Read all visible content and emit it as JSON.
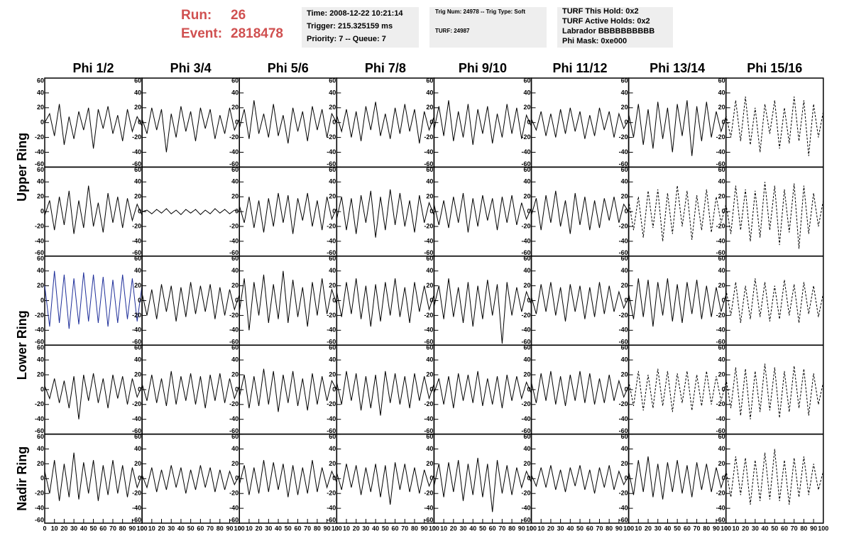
{
  "header": {
    "run_label": "Run:",
    "run": "26",
    "event_label": "Event:",
    "event": "2818478",
    "boxes": [
      [
        "Time: 2008-12-22 10:21:14",
        "Trigger: 215.325159 ms",
        "Priority: 7 -- Queue: 7"
      ],
      [
        "Trig Num: 24978 -- Trig Type: Soft",
        "TURF: 24987"
      ],
      [
        "TURF This Hold: 0x2",
        "TURF Active Holds: 0x2",
        "Labrador BBBBBBBBBB",
        "Phi Mask: 0xe000"
      ]
    ]
  },
  "chart_data": {
    "type": "line",
    "columns": [
      "Phi 1/2",
      "Phi 3/4",
      "Phi 5/6",
      "Phi 7/8",
      "Phi 9/10",
      "Phi 11/12",
      "Phi 13/14",
      "Phi 15/16"
    ],
    "row_labels": [
      "Upper Ring",
      "Lower Ring",
      "Nadir Ring"
    ],
    "x": [
      0,
      5,
      10,
      15,
      20,
      25,
      30,
      35,
      40,
      45,
      50,
      55,
      60,
      65,
      70,
      75,
      80,
      85,
      90,
      95,
      100
    ],
    "xlim": [
      0,
      100
    ],
    "ylim": [
      -60,
      60
    ],
    "xticks": [
      0,
      10,
      20,
      30,
      40,
      50,
      60,
      70,
      80,
      90,
      100
    ],
    "yticks": [
      -60,
      -40,
      -20,
      0,
      20,
      40,
      60
    ],
    "panels": [
      [
        {
          "color": "#000000",
          "style": "solid",
          "values": [
            0,
            12,
            -18,
            25,
            -30,
            8,
            -22,
            15,
            -10,
            20,
            -35,
            18,
            -8,
            22,
            -15,
            10,
            -25,
            18,
            -12,
            8,
            -5
          ]
        },
        {
          "color": "#000000",
          "style": "solid",
          "values": [
            5,
            -15,
            20,
            -10,
            18,
            -40,
            12,
            -20,
            22,
            -12,
            15,
            -25,
            20,
            -8,
            18,
            -22,
            10,
            -15,
            20,
            -10,
            5
          ]
        },
        {
          "color": "#000000",
          "style": "solid",
          "values": [
            -8,
            18,
            -22,
            30,
            -15,
            12,
            -20,
            25,
            -18,
            10,
            -28,
            20,
            -12,
            15,
            -25,
            22,
            -10,
            18,
            -20,
            12,
            0
          ]
        },
        {
          "color": "#000000",
          "style": "solid",
          "values": [
            10,
            -12,
            18,
            -20,
            15,
            -25,
            22,
            -10,
            28,
            -18,
            12,
            -22,
            20,
            -15,
            25,
            -12,
            18,
            -28,
            15,
            -10,
            8
          ]
        },
        {
          "color": "#000000",
          "style": "solid",
          "values": [
            -10,
            22,
            -18,
            30,
            -25,
            15,
            -20,
            25,
            -30,
            18,
            -15,
            22,
            -28,
            12,
            -20,
            25,
            -15,
            20,
            -22,
            10,
            -5
          ]
        },
        {
          "color": "#000000",
          "style": "solid",
          "values": [
            5,
            -10,
            15,
            -18,
            12,
            -20,
            18,
            -15,
            20,
            -12,
            15,
            -22,
            10,
            -18,
            20,
            -10,
            15,
            -20,
            12,
            -8,
            4
          ]
        },
        {
          "color": "#000000",
          "style": "solid",
          "values": [
            12,
            -20,
            25,
            -30,
            18,
            -35,
            28,
            -22,
            20,
            -40,
            25,
            -18,
            30,
            -45,
            22,
            -25,
            28,
            -20,
            15,
            -12,
            8
          ]
        },
        {
          "color": "#000000",
          "style": "dashed",
          "values": [
            10,
            -20,
            30,
            -25,
            35,
            -30,
            20,
            -40,
            25,
            -15,
            30,
            -35,
            20,
            -28,
            35,
            -25,
            30,
            -45,
            25,
            -20,
            15
          ]
        }
      ],
      [
        {
          "color": "#000000",
          "style": "solid",
          "values": [
            -5,
            15,
            -25,
            20,
            -18,
            28,
            -30,
            15,
            -22,
            35,
            -20,
            12,
            -28,
            25,
            -15,
            20,
            -22,
            18,
            -12,
            10,
            -5
          ]
        },
        {
          "color": "#000000",
          "style": "solid",
          "values": [
            0,
            2,
            -3,
            3,
            -2,
            4,
            -3,
            2,
            -4,
            3,
            -2,
            3,
            -4,
            2,
            -3,
            4,
            -2,
            3,
            -3,
            2,
            0
          ]
        },
        {
          "color": "#000000",
          "style": "solid",
          "values": [
            8,
            -15,
            20,
            -22,
            15,
            -28,
            18,
            -20,
            25,
            -15,
            22,
            -30,
            18,
            -12,
            25,
            -20,
            15,
            -25,
            20,
            -10,
            5
          ]
        },
        {
          "color": "#000000",
          "style": "solid",
          "values": [
            -10,
            20,
            -25,
            18,
            -30,
            22,
            -15,
            28,
            -35,
            20,
            -25,
            30,
            -18,
            25,
            -20,
            15,
            -28,
            22,
            -15,
            12,
            -5
          ]
        },
        {
          "color": "#000000",
          "style": "solid",
          "values": [
            10,
            -18,
            15,
            -22,
            20,
            -15,
            25,
            -28,
            18,
            -20,
            22,
            -12,
            18,
            -25,
            20,
            -15,
            22,
            -18,
            12,
            -10,
            5
          ]
        },
        {
          "color": "#000000",
          "style": "solid",
          "values": [
            -5,
            18,
            -25,
            22,
            -15,
            28,
            -20,
            15,
            -30,
            25,
            -18,
            20,
            -25,
            15,
            -22,
            18,
            -12,
            20,
            -15,
            10,
            0
          ]
        },
        {
          "color": "#000000",
          "style": "dashed",
          "values": [
            15,
            -25,
            20,
            -35,
            28,
            -22,
            30,
            -40,
            25,
            -30,
            35,
            -20,
            28,
            -38,
            22,
            -25,
            30,
            -28,
            20,
            -15,
            10
          ]
        },
        {
          "color": "#000000",
          "style": "dashed",
          "values": [
            10,
            -30,
            35,
            -25,
            30,
            -40,
            28,
            -35,
            40,
            -25,
            35,
            -45,
            30,
            -28,
            38,
            -50,
            35,
            -30,
            25,
            -20,
            15
          ]
        }
      ],
      [
        {
          "color": "#1f2f9a",
          "style": "solid",
          "values": [
            20,
            -35,
            40,
            -30,
            35,
            -38,
            30,
            -32,
            38,
            -28,
            35,
            -30,
            32,
            -35,
            28,
            -30,
            35,
            -25,
            30,
            -28,
            20
          ]
        },
        {
          "color": "#000000",
          "style": "solid",
          "values": [
            10,
            -20,
            15,
            -25,
            22,
            -15,
            20,
            -28,
            18,
            -22,
            25,
            -18,
            20,
            -15,
            22,
            -25,
            18,
            -20,
            15,
            -12,
            8
          ]
        },
        {
          "color": "#000000",
          "style": "solid",
          "values": [
            -15,
            30,
            -40,
            25,
            -20,
            35,
            -30,
            22,
            -25,
            40,
            -30,
            28,
            -22,
            18,
            -35,
            25,
            -20,
            30,
            -18,
            15,
            -5
          ]
        },
        {
          "color": "#000000",
          "style": "solid",
          "values": [
            12,
            -22,
            25,
            -18,
            30,
            -25,
            20,
            -35,
            22,
            -28,
            25,
            -20,
            30,
            -22,
            18,
            -30,
            25,
            -15,
            20,
            -12,
            8
          ]
        },
        {
          "color": "#000000",
          "style": "solid",
          "values": [
            -8,
            20,
            -25,
            30,
            -22,
            18,
            -30,
            25,
            -35,
            20,
            -25,
            28,
            -20,
            22,
            -58,
            25,
            -20,
            18,
            -15,
            12,
            -5
          ]
        },
        {
          "color": "#000000",
          "style": "solid",
          "values": [
            5,
            -18,
            22,
            -15,
            25,
            -20,
            18,
            -28,
            22,
            -15,
            20,
            -25,
            18,
            -22,
            25,
            -18,
            20,
            -15,
            12,
            -10,
            5
          ]
        },
        {
          "color": "#000000",
          "style": "solid",
          "values": [
            10,
            -25,
            30,
            -22,
            28,
            -35,
            25,
            -20,
            30,
            -28,
            22,
            -30,
            25,
            -18,
            28,
            -25,
            20,
            -22,
            18,
            -15,
            8
          ]
        },
        {
          "color": "#000000",
          "style": "dashed",
          "values": [
            15,
            -20,
            25,
            -30,
            20,
            -25,
            30,
            -22,
            25,
            -28,
            20,
            -25,
            28,
            -20,
            22,
            -30,
            25,
            -18,
            20,
            -22,
            10
          ]
        }
      ],
      [
        {
          "color": "#000000",
          "style": "solid",
          "values": [
            5,
            -12,
            15,
            -18,
            12,
            -25,
            18,
            -40,
            20,
            -15,
            22,
            -18,
            15,
            -25,
            20,
            -12,
            18,
            -20,
            15,
            -10,
            5
          ]
        },
        {
          "color": "#000000",
          "style": "solid",
          "values": [
            8,
            -15,
            20,
            -18,
            15,
            -22,
            25,
            -20,
            18,
            -15,
            22,
            -20,
            18,
            -25,
            20,
            -15,
            22,
            -18,
            15,
            -12,
            5
          ]
        },
        {
          "color": "#000000",
          "style": "solid",
          "values": [
            -10,
            20,
            -25,
            18,
            -22,
            28,
            -20,
            25,
            -30,
            20,
            -18,
            25,
            -22,
            15,
            -28,
            22,
            -20,
            18,
            -15,
            12,
            0
          ]
        },
        {
          "color": "#000000",
          "style": "solid",
          "values": [
            10,
            -20,
            25,
            -15,
            22,
            -28,
            18,
            -25,
            20,
            -35,
            25,
            -18,
            22,
            -20,
            18,
            -25,
            22,
            -15,
            18,
            -12,
            8
          ]
        },
        {
          "color": "#000000",
          "style": "solid",
          "values": [
            -5,
            15,
            -20,
            18,
            -25,
            22,
            -15,
            20,
            -18,
            25,
            -22,
            15,
            -20,
            18,
            -25,
            20,
            -15,
            18,
            -12,
            10,
            -5
          ]
        },
        {
          "color": "#000000",
          "style": "solid",
          "values": [
            10,
            -18,
            22,
            -15,
            25,
            -20,
            18,
            -22,
            20,
            -15,
            25,
            -18,
            22,
            -20,
            15,
            -18,
            20,
            -15,
            12,
            -10,
            5
          ]
        },
        {
          "color": "#000000",
          "style": "dashed",
          "values": [
            12,
            -22,
            25,
            -28,
            20,
            -25,
            28,
            -22,
            25,
            -30,
            22,
            -18,
            25,
            -28,
            20,
            -22,
            25,
            -20,
            18,
            -15,
            10
          ]
        },
        {
          "color": "#000000",
          "style": "dashed",
          "values": [
            15,
            -25,
            30,
            -35,
            28,
            -40,
            25,
            -30,
            35,
            -28,
            30,
            -38,
            25,
            -30,
            32,
            -25,
            28,
            -35,
            22,
            -20,
            10
          ]
        }
      ],
      [
        {
          "color": "#000000",
          "style": "solid",
          "values": [
            10,
            -20,
            25,
            -30,
            20,
            -25,
            35,
            -28,
            22,
            -20,
            25,
            -30,
            18,
            -22,
            25,
            -20,
            18,
            -25,
            15,
            -12,
            5
          ]
        },
        {
          "color": "#000000",
          "style": "solid",
          "values": [
            5,
            -12,
            15,
            -18,
            12,
            -15,
            18,
            -12,
            15,
            -20,
            12,
            -15,
            18,
            -12,
            15,
            -18,
            12,
            -15,
            10,
            -8,
            5
          ]
        },
        {
          "color": "#000000",
          "style": "solid",
          "values": [
            -8,
            18,
            -22,
            15,
            -20,
            25,
            -18,
            22,
            -15,
            20,
            -25,
            18,
            -22,
            15,
            -20,
            25,
            -18,
            15,
            -12,
            10,
            -5
          ]
        },
        {
          "color": "#000000",
          "style": "solid",
          "values": [
            8,
            -15,
            20,
            -12,
            18,
            -22,
            15,
            -18,
            20,
            -25,
            18,
            -35,
            22,
            -15,
            20,
            -18,
            15,
            -20,
            12,
            -10,
            5
          ]
        },
        {
          "color": "#000000",
          "style": "solid",
          "values": [
            -10,
            20,
            -25,
            22,
            -18,
            25,
            -30,
            20,
            -22,
            28,
            -25,
            20,
            -45,
            25,
            -20,
            18,
            -22,
            15,
            -12,
            10,
            -5
          ]
        },
        {
          "color": "#000000",
          "style": "solid",
          "values": [
            5,
            -10,
            15,
            -12,
            18,
            -15,
            12,
            -18,
            15,
            -10,
            18,
            -15,
            12,
            -20,
            15,
            -12,
            18,
            -15,
            10,
            -8,
            4
          ]
        },
        {
          "color": "#000000",
          "style": "solid",
          "values": [
            10,
            -22,
            25,
            -18,
            30,
            -25,
            20,
            -28,
            22,
            -18,
            25,
            -20,
            18,
            -25,
            22,
            -15,
            20,
            -18,
            15,
            -12,
            8
          ]
        },
        {
          "color": "#000000",
          "style": "dashed",
          "values": [
            12,
            -25,
            30,
            -22,
            28,
            -35,
            25,
            -30,
            35,
            -28,
            40,
            -30,
            25,
            -35,
            28,
            -25,
            30,
            -22,
            20,
            -15,
            10
          ]
        }
      ]
    ]
  }
}
